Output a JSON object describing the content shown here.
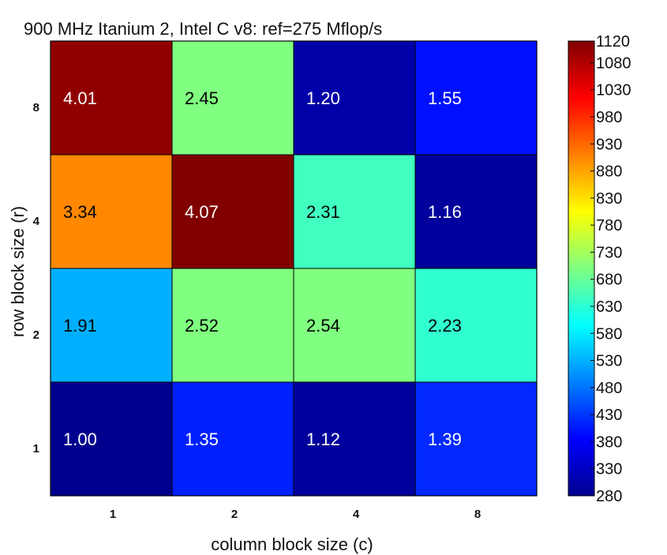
{
  "chart_data": {
    "type": "heatmap",
    "title": "900 MHz Itanium 2, Intel C v8: ref=275 Mflop/s",
    "xlabel": "column block size (c)",
    "ylabel": "row block size (r)",
    "x_categories": [
      "1",
      "2",
      "4",
      "8"
    ],
    "y_categories": [
      "1",
      "2",
      "4",
      "8"
    ],
    "grid": true,
    "cells": [
      {
        "r": "8",
        "c": "1",
        "label": "4.01",
        "color": "#910000",
        "label_color": "#ffffff"
      },
      {
        "r": "8",
        "c": "2",
        "label": "2.45",
        "color": "#80ff80",
        "label_color": "#000000"
      },
      {
        "r": "8",
        "c": "4",
        "label": "1.20",
        "color": "#0000a8",
        "label_color": "#ffffff"
      },
      {
        "r": "8",
        "c": "8",
        "label": "1.55",
        "color": "#0010ff",
        "label_color": "#ffffff"
      },
      {
        "r": "4",
        "c": "1",
        "label": "3.34",
        "color": "#ff8800",
        "label_color": "#000000"
      },
      {
        "r": "4",
        "c": "2",
        "label": "4.07",
        "color": "#800000",
        "label_color": "#ffffff"
      },
      {
        "r": "4",
        "c": "4",
        "label": "2.31",
        "color": "#40ffc0",
        "label_color": "#000000"
      },
      {
        "r": "4",
        "c": "8",
        "label": "1.16",
        "color": "#00009c",
        "label_color": "#ffffff"
      },
      {
        "r": "2",
        "c": "1",
        "label": "1.91",
        "color": "#00b0ff",
        "label_color": "#000000"
      },
      {
        "r": "2",
        "c": "2",
        "label": "2.52",
        "color": "#80ff80",
        "label_color": "#000000"
      },
      {
        "r": "2",
        "c": "4",
        "label": "2.54",
        "color": "#80ff80",
        "label_color": "#000000"
      },
      {
        "r": "2",
        "c": "8",
        "label": "2.23",
        "color": "#30ffd0",
        "label_color": "#000000"
      },
      {
        "r": "1",
        "c": "1",
        "label": "1.00",
        "color": "#00008f",
        "label_color": "#ffffff"
      },
      {
        "r": "1",
        "c": "2",
        "label": "1.35",
        "color": "#0020ff",
        "label_color": "#ffffff"
      },
      {
        "r": "1",
        "c": "4",
        "label": "1.12",
        "color": "#00009c",
        "label_color": "#ffffff"
      },
      {
        "r": "1",
        "c": "8",
        "label": "1.39",
        "color": "#0028ff",
        "label_color": "#ffffff"
      }
    ],
    "colorbar": {
      "colormap": "jet",
      "range": [
        280,
        1120
      ],
      "ticks": [
        "1120",
        "1080",
        "1030",
        "980",
        "930",
        "880",
        "830",
        "780",
        "730",
        "680",
        "630",
        "580",
        "530",
        "480",
        "430",
        "380",
        "330",
        "280"
      ]
    }
  }
}
